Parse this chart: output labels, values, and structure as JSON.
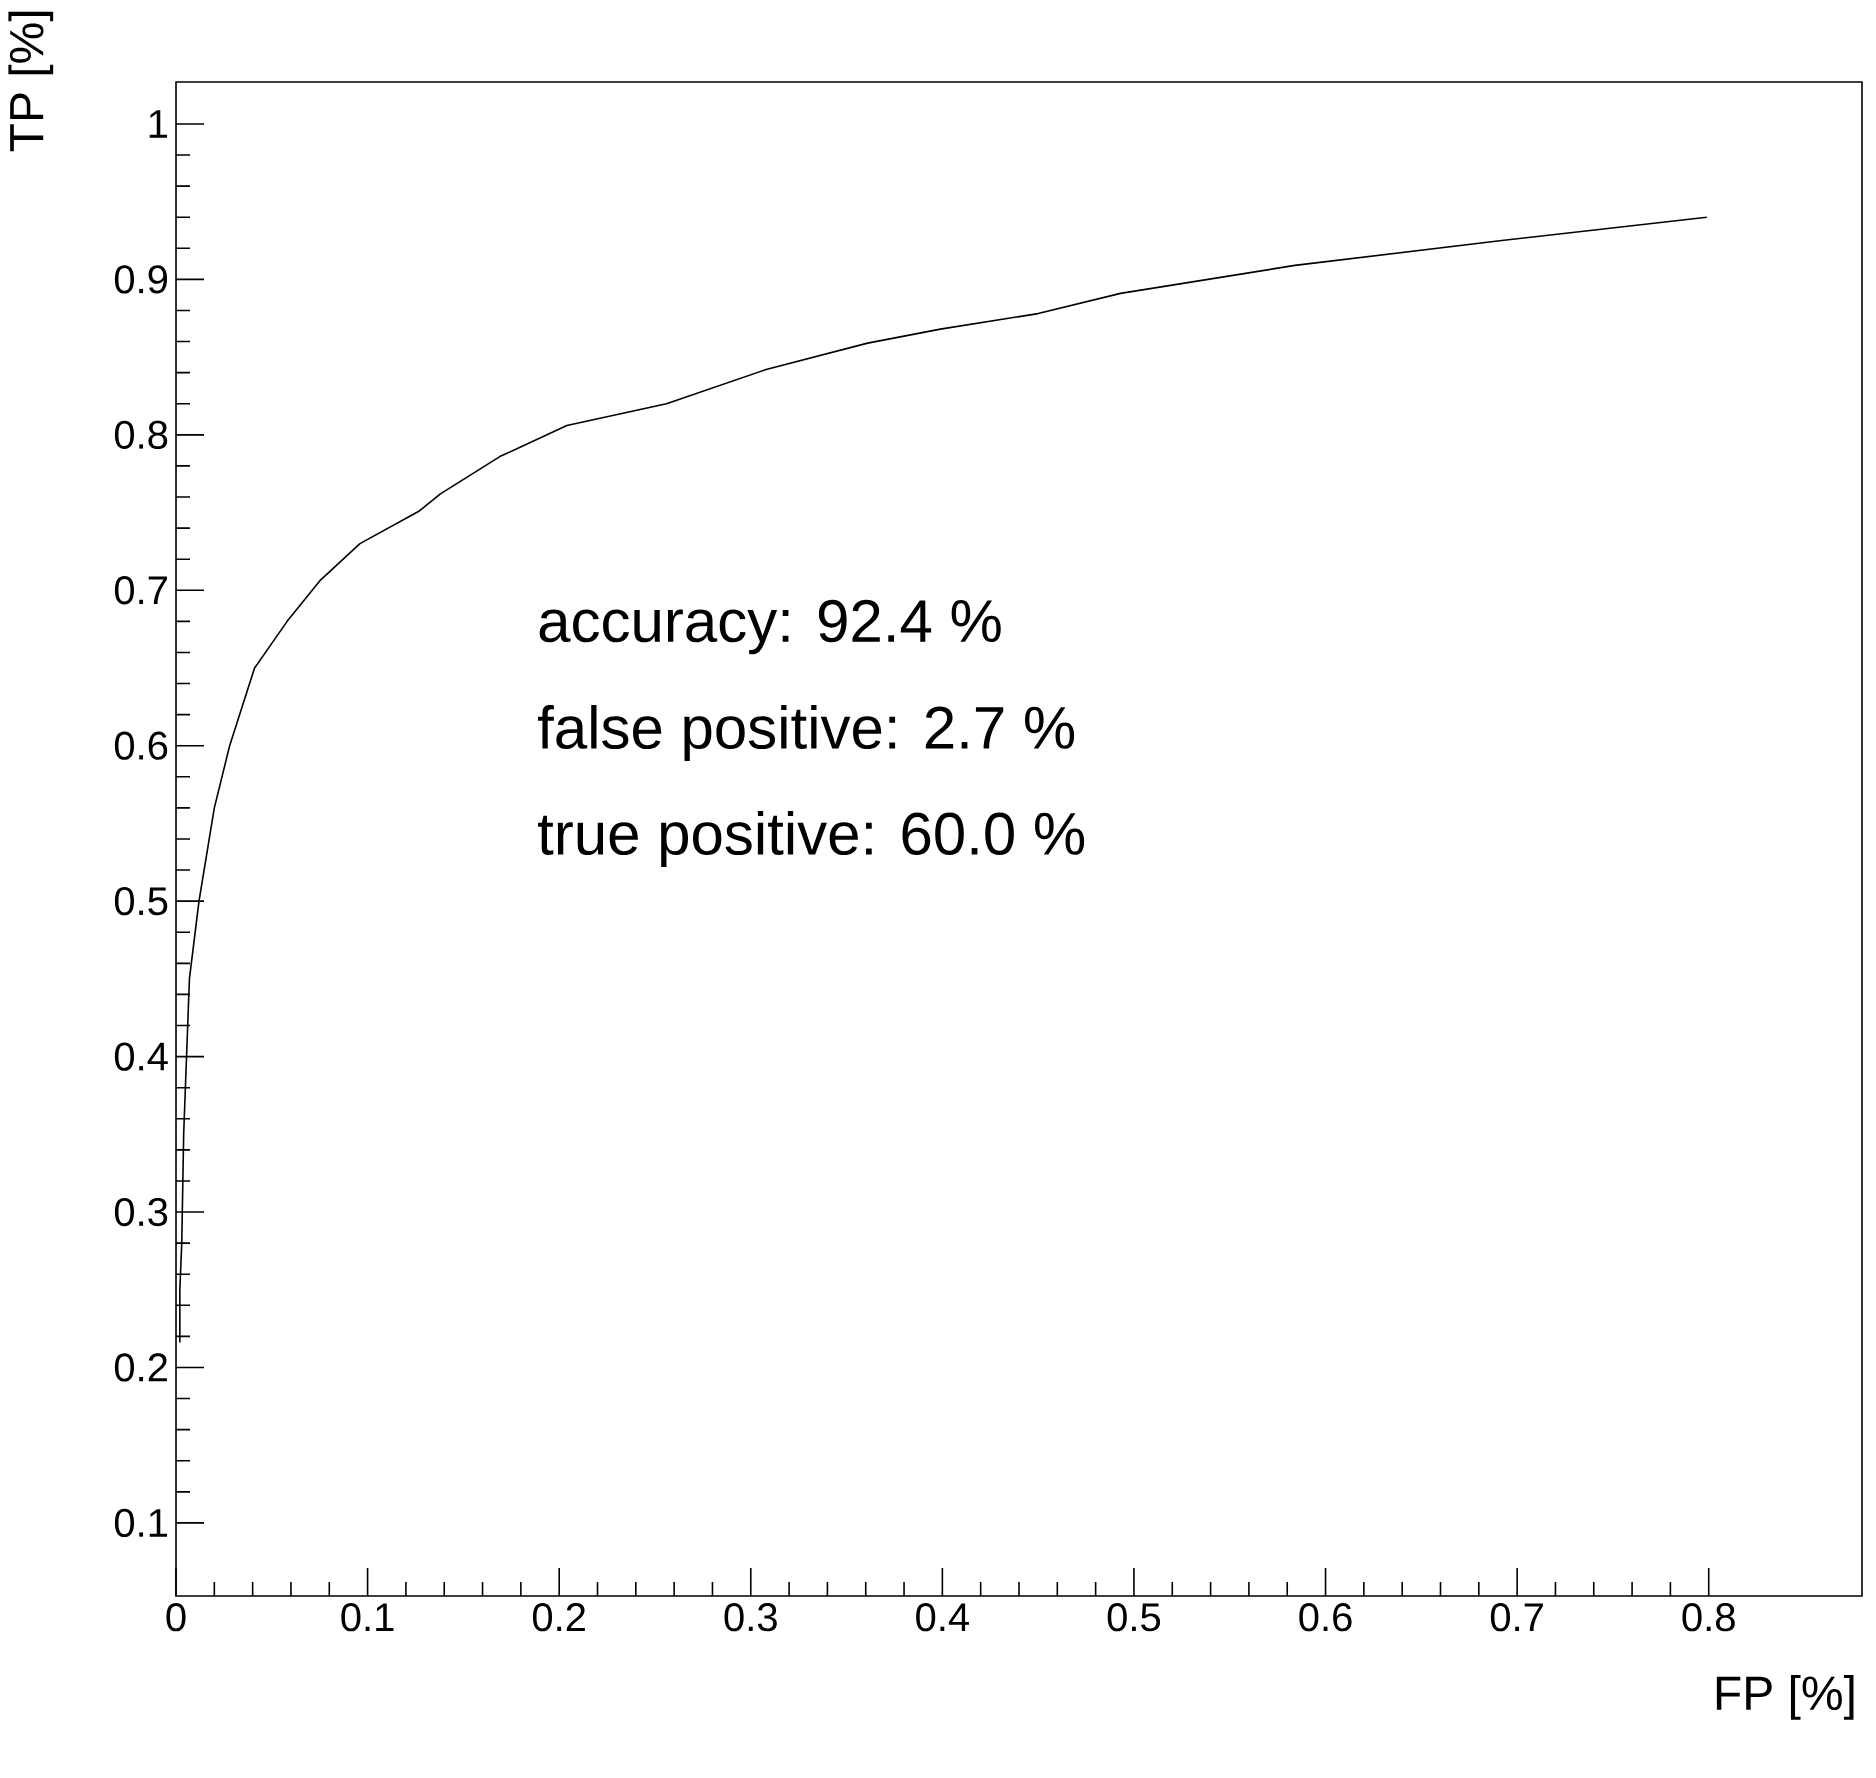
{
  "chart_data": {
    "type": "line",
    "xlabel": "FP [%]",
    "ylabel": "TP [%]",
    "annotations": [
      "accuracy: 92.4 %",
      "false positive: 2.7 %",
      "true positive: 60.0 %"
    ],
    "xlim": [
      0,
      0.88
    ],
    "ylim": [
      0.053,
      1.027
    ],
    "xticks": [
      0,
      0.1,
      0.2,
      0.3,
      0.4,
      0.5,
      0.6,
      0.7,
      0.8
    ],
    "yticks": [
      0.1,
      0.2,
      0.3,
      0.4,
      0.5,
      0.6,
      0.7,
      0.8,
      0.9,
      1
    ],
    "grid": false,
    "marker": "none",
    "line_style": "solid",
    "series": [
      {
        "color": "#000000",
        "x": [
          0.002,
          0.002,
          0.003,
          0.004,
          0.007,
          0.012,
          0.02,
          0.028,
          0.041,
          0.058,
          0.075,
          0.096,
          0.127,
          0.138,
          0.169,
          0.204,
          0.256,
          0.308,
          0.361,
          0.399,
          0.45,
          0.493,
          0.584,
          0.692,
          0.799
        ],
        "values": [
          0.216,
          0.25,
          0.28,
          0.35,
          0.45,
          0.5,
          0.56,
          0.6,
          0.65,
          0.68,
          0.706,
          0.73,
          0.751,
          0.762,
          0.786,
          0.806,
          0.82,
          0.842,
          0.859,
          0.868,
          0.878,
          0.891,
          0.909,
          0.925,
          0.94
        ]
      }
    ]
  }
}
